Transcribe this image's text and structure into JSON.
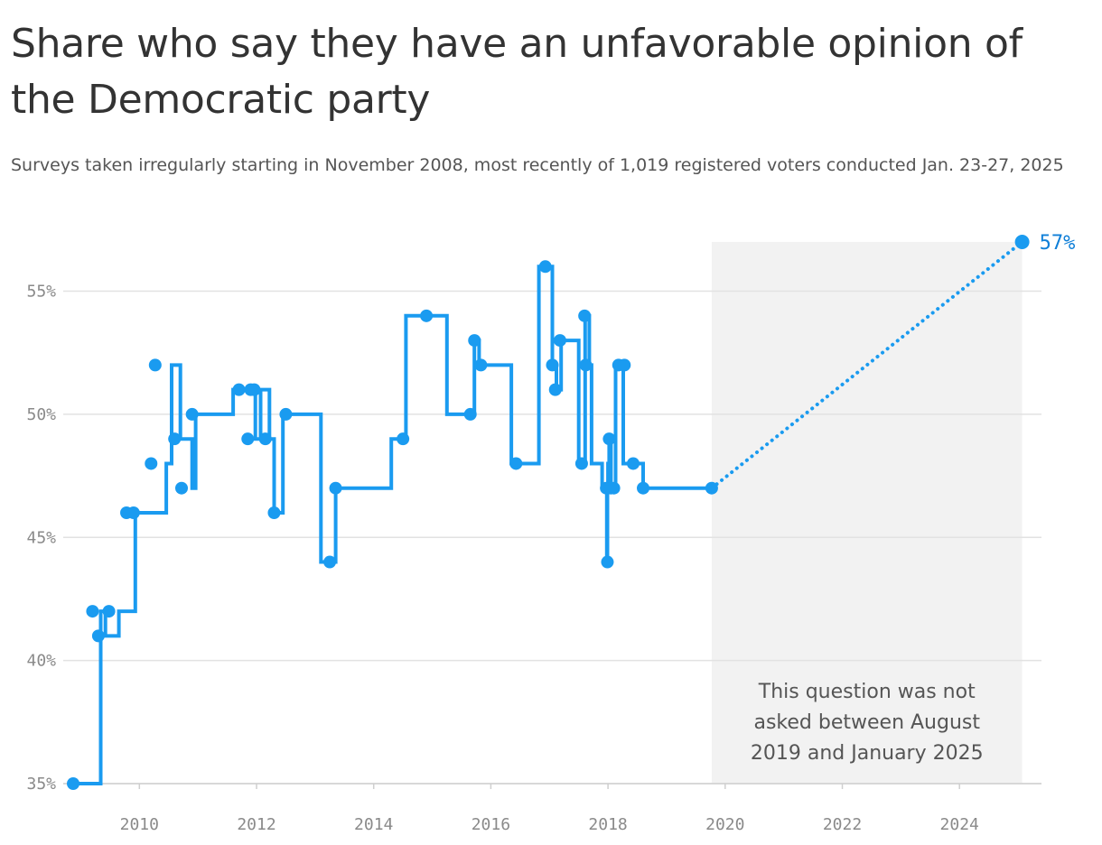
{
  "colors": {
    "series": "#1a9bf0",
    "end_label": "#0f7fd8",
    "grid": "#e2e2e2",
    "shade": "#f2f2f2",
    "tick": "#8a8a8a"
  },
  "chart_data": {
    "type": "line",
    "title": "Share who say they have an unfavorable opinion of the Democratic party",
    "subtitle": "Surveys taken irregularly starting in November 2008, most recently of 1,019 registered voters conducted Jan. 23-27, 2025",
    "line_style": "step",
    "xlim": [
      2008.7,
      2025.4
    ],
    "ylim": [
      35,
      57
    ],
    "x_ticks": [
      2010,
      2012,
      2014,
      2016,
      2018,
      2020,
      2022,
      2024
    ],
    "x_tick_labels": [
      "2010",
      "2012",
      "2014",
      "2016",
      "2018",
      "2020",
      "2022",
      "2024"
    ],
    "y_ticks": [
      35,
      40,
      45,
      50,
      55
    ],
    "y_tick_labels": [
      "35%",
      "40%",
      "45%",
      "50%",
      "55%"
    ],
    "grid": "horizontal",
    "series": [
      {
        "x": [
          2008.87,
          2009.34,
          2009.42,
          2009.65,
          2009.93,
          2010.03,
          2010.46,
          2010.55,
          2010.7,
          2010.9,
          2010.96,
          2011.6,
          2011.88,
          2011.98,
          2012.07,
          2012.22,
          2012.3,
          2012.45,
          2013.1,
          2013.35,
          2013.5,
          2014.3,
          2014.55,
          2015.25,
          2015.72,
          2015.8,
          2015.92,
          2016.35,
          2016.54,
          2016.82,
          2017.05,
          2017.12,
          2017.2,
          2017.5,
          2017.61,
          2017.68,
          2017.72,
          2017.9,
          2017.98,
          2017.99,
          2018.0,
          2018.02,
          2018.05,
          2018.1,
          2018.13,
          2018.18,
          2018.26,
          2018.44,
          2018.6,
          2019.77
        ],
        "y": [
          35,
          42,
          41,
          42,
          46,
          46,
          48,
          52,
          49,
          47,
          50,
          51,
          51,
          49,
          51,
          49,
          46,
          50,
          44,
          47,
          47,
          49,
          54,
          50,
          53,
          52,
          52,
          48,
          48,
          56,
          52,
          51,
          53,
          48,
          54,
          52,
          48,
          47,
          44,
          47,
          48,
          49,
          47,
          47,
          52,
          52,
          48,
          48,
          47,
          47
        ]
      }
    ],
    "marked_points": [
      [
        2008.87,
        35
      ],
      [
        2009.2,
        42
      ],
      [
        2009.3,
        41
      ],
      [
        2009.48,
        42
      ],
      [
        2009.78,
        46
      ],
      [
        2009.9,
        46
      ],
      [
        2010.2,
        48
      ],
      [
        2010.27,
        52
      ],
      [
        2010.6,
        49
      ],
      [
        2010.72,
        47
      ],
      [
        2010.9,
        50
      ],
      [
        2011.7,
        51
      ],
      [
        2011.85,
        49
      ],
      [
        2011.9,
        51
      ],
      [
        2011.96,
        51
      ],
      [
        2012.15,
        49
      ],
      [
        2012.3,
        46
      ],
      [
        2012.5,
        50
      ],
      [
        2013.25,
        44
      ],
      [
        2013.35,
        47
      ],
      [
        2014.5,
        49
      ],
      [
        2014.9,
        54
      ],
      [
        2015.65,
        50
      ],
      [
        2015.72,
        53
      ],
      [
        2015.83,
        52
      ],
      [
        2016.43,
        48
      ],
      [
        2016.93,
        56
      ],
      [
        2017.05,
        52
      ],
      [
        2017.1,
        51
      ],
      [
        2017.18,
        53
      ],
      [
        2017.55,
        48
      ],
      [
        2017.6,
        54
      ],
      [
        2017.62,
        52
      ],
      [
        2017.97,
        47
      ],
      [
        2017.99,
        44
      ],
      [
        2018.02,
        49
      ],
      [
        2018.05,
        47
      ],
      [
        2018.1,
        47
      ],
      [
        2018.18,
        52
      ],
      [
        2018.28,
        52
      ],
      [
        2018.43,
        48
      ],
      [
        2018.6,
        47
      ],
      [
        2019.77,
        47
      ]
    ],
    "projection": {
      "from": [
        2019.77,
        47
      ],
      "to": [
        2025.07,
        57
      ],
      "style": "dotted"
    },
    "end_label": "57%",
    "shaded_region": {
      "x": [
        2019.77,
        2025.07
      ],
      "y": [
        35,
        57
      ]
    },
    "annotation_lines": [
      "This question was not",
      "asked between August",
      "2019 and January 2025"
    ]
  }
}
